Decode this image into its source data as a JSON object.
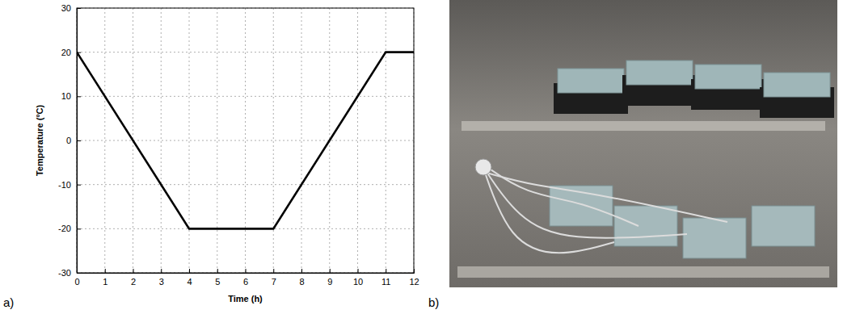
{
  "chart_data": {
    "type": "line",
    "panel_label": "a)",
    "x_label": "Time (h)",
    "y_label": "Temperature (ºC)",
    "x": [
      0,
      4,
      7,
      11,
      12
    ],
    "values": [
      20,
      -20,
      -20,
      20,
      20
    ],
    "color": "#000000",
    "xlim": [
      0,
      12
    ],
    "xticks": [
      0,
      1,
      2,
      3,
      4,
      5,
      6,
      7,
      8,
      9,
      10,
      11,
      12
    ],
    "ylim": [
      -30,
      30
    ],
    "yticks": [
      -30,
      -20,
      -10,
      0,
      10,
      20,
      30
    ],
    "grid": true
  },
  "photo": {
    "panel_label": "b)"
  }
}
